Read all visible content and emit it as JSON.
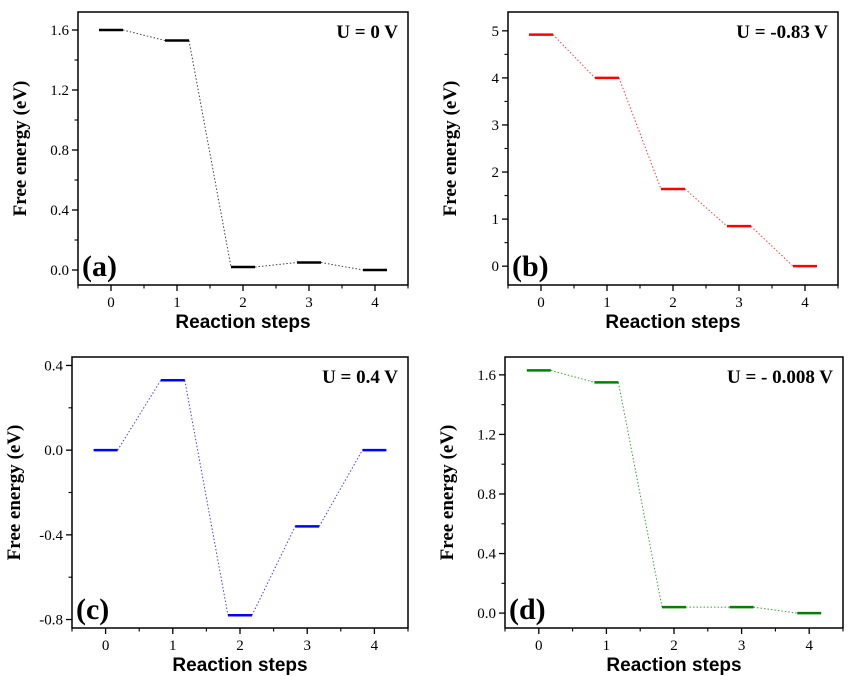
{
  "figure": {
    "charts": [
      {
        "panel": "(a)",
        "title": "U = 0 V",
        "color": "#000000",
        "ylim": [
          -0.1,
          1.72
        ],
        "yticks": [
          0.0,
          0.4,
          0.8,
          1.2,
          1.6
        ],
        "ytick_labels": [
          "0.0",
          "0.4",
          "0.8",
          "1.2",
          "1.6"
        ]
      },
      {
        "panel": "(b)",
        "title": "U = -0.83 V",
        "color": "#ff0000",
        "ylim": [
          -0.4,
          5.4
        ],
        "yticks": [
          0,
          1,
          2,
          3,
          4,
          5
        ],
        "ytick_labels": [
          "0",
          "1",
          "2",
          "3",
          "4",
          "5"
        ]
      },
      {
        "panel": "(c)",
        "title": "U = 0.4 V",
        "color": "#0000ff",
        "ylim": [
          -0.84,
          0.44
        ],
        "yticks": [
          -0.8,
          -0.4,
          0.0,
          0.4
        ],
        "ytick_labels": [
          "-0.8",
          "-0.4",
          "0.0",
          "0.4"
        ]
      },
      {
        "panel": "(d)",
        "title": "U = - 0.008 V",
        "color": "#008000",
        "ylim": [
          -0.1,
          1.72
        ],
        "yticks": [
          0.0,
          0.4,
          0.8,
          1.2,
          1.6
        ],
        "ytick_labels": [
          "0.0",
          "0.4",
          "0.8",
          "1.2",
          "1.6"
        ]
      }
    ]
  },
  "chart_data": [
    {
      "type": "line",
      "title": "U = 0 V",
      "panel": "(a)",
      "xlabel": "Reaction steps",
      "ylabel": "Free energy (eV)",
      "x": [
        0,
        1,
        2,
        3,
        4
      ],
      "xtick_labels": [
        "0",
        "1",
        "2",
        "3",
        "4"
      ],
      "series": [
        {
          "name": "U = 0 V",
          "values": [
            1.6,
            1.53,
            0.02,
            0.05,
            0.0
          ]
        }
      ],
      "ylim": [
        -0.1,
        1.72
      ]
    },
    {
      "type": "line",
      "title": "U = -0.83 V",
      "panel": "(b)",
      "xlabel": "Reaction steps",
      "ylabel": "Free energy (eV)",
      "x": [
        0,
        1,
        2,
        3,
        4
      ],
      "xtick_labels": [
        "0",
        "1",
        "2",
        "3",
        "4"
      ],
      "series": [
        {
          "name": "U = -0.83 V",
          "values": [
            4.92,
            4.0,
            1.64,
            0.85,
            0.0
          ]
        }
      ],
      "ylim": [
        -0.4,
        5.4
      ]
    },
    {
      "type": "line",
      "title": "U = 0.4 V",
      "panel": "(c)",
      "xlabel": "Reaction steps",
      "ylabel": "Free energy (eV)",
      "x": [
        0,
        1,
        2,
        3,
        4
      ],
      "xtick_labels": [
        "0",
        "1",
        "2",
        "3",
        "4"
      ],
      "series": [
        {
          "name": "U = 0.4 V",
          "values": [
            0.0,
            0.33,
            -0.78,
            -0.36,
            0.0
          ]
        }
      ],
      "ylim": [
        -0.84,
        0.44
      ]
    },
    {
      "type": "line",
      "title": "U = - 0.008 V",
      "panel": "(d)",
      "xlabel": "Reaction steps",
      "ylabel": "Free energy (eV)",
      "x": [
        0,
        1,
        2,
        3,
        4
      ],
      "xtick_labels": [
        "0",
        "1",
        "2",
        "3",
        "4"
      ],
      "series": [
        {
          "name": "U = - 0.008 V",
          "values": [
            1.63,
            1.55,
            0.04,
            0.04,
            0.0
          ]
        }
      ],
      "ylim": [
        -0.1,
        1.72
      ]
    }
  ]
}
